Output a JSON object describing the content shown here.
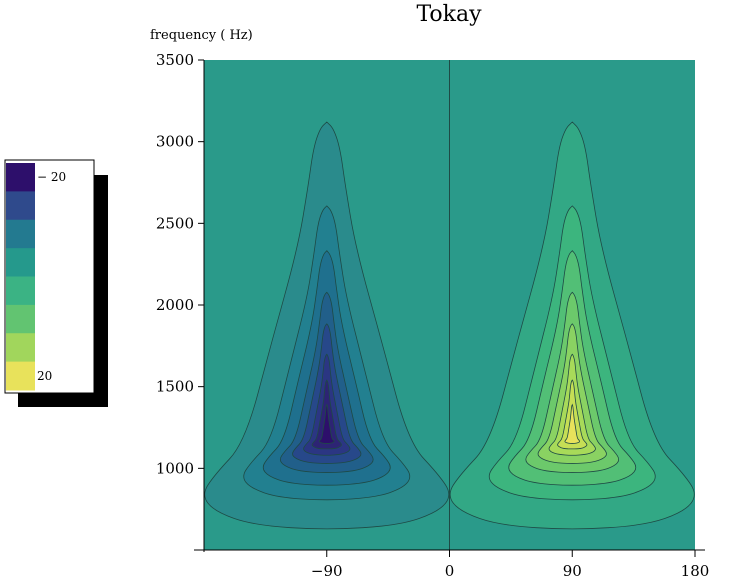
{
  "chart_data": {
    "type": "contour",
    "title": "Tokay",
    "ylabel": "frequency ( Hz)",
    "xlabel": "",
    "xlim": [
      -180,
      180
    ],
    "ylim": [
      500,
      3500
    ],
    "x_ticks": [
      -90,
      0,
      90,
      180
    ],
    "y_ticks": [
      1000,
      1500,
      2000,
      2500,
      3000,
      3500
    ],
    "zero_line_x": 0,
    "lobes": [
      {
        "name": "negative-lobe",
        "center_x": -90,
        "center_freq": 1180,
        "peak": -20
      },
      {
        "name": "positive-lobe",
        "center_x": 90,
        "center_freq": 1180,
        "peak": 20
      }
    ],
    "contour_levels": [
      -20,
      -15,
      -10,
      -5,
      0,
      5,
      10,
      15,
      20
    ],
    "colorbar": {
      "labels": [
        "− 20",
        "20"
      ],
      "colors": [
        "#2d0f6b",
        "#2f4a8c",
        "#237a90",
        "#25998c",
        "#3bb384",
        "#62c471",
        "#a1d65c",
        "#e8e25b"
      ]
    },
    "background_color": "#2a9a8a",
    "line_color": "#1e4a45"
  }
}
